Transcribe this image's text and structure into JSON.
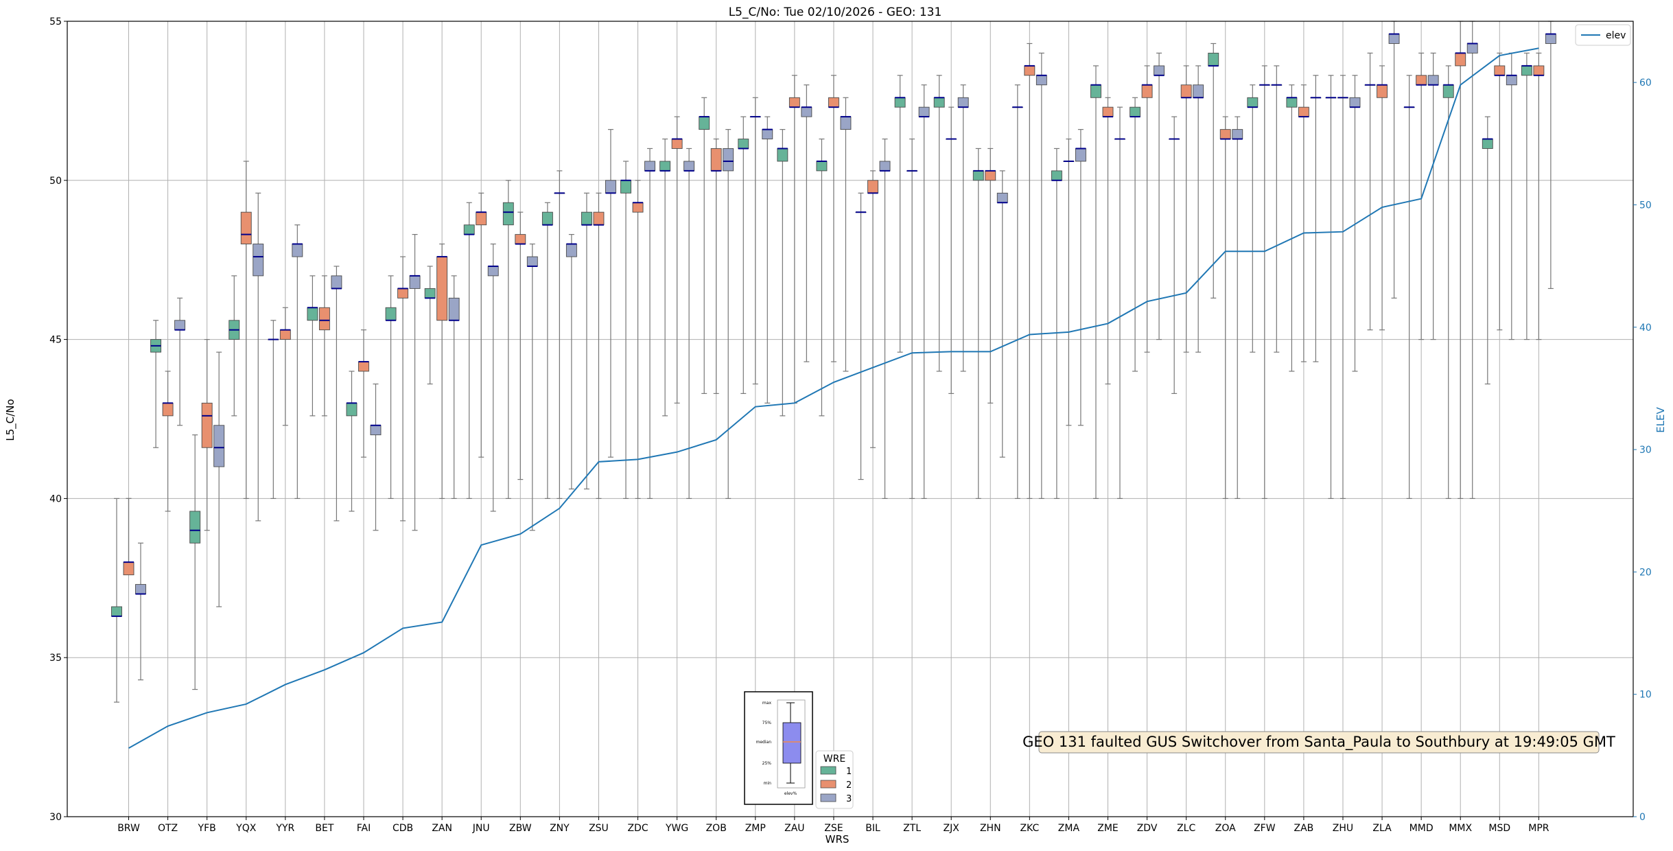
{
  "chart_data": {
    "type": "boxplot",
    "title": "L5_C/No: Tue 02/10/2026 - GEO: 131",
    "xlabel": "WRS",
    "ylabel": "L5_C/No",
    "ylabel_right": "ELEV",
    "ylim": [
      30,
      55
    ],
    "ylim_right": [
      0,
      65
    ],
    "yticks": [
      30,
      35,
      40,
      45,
      50,
      55
    ],
    "yticks_right": [
      0,
      10,
      20,
      30,
      40,
      50,
      60
    ],
    "grid": true,
    "categories": [
      "BRW",
      "OTZ",
      "YFB",
      "YQX",
      "YYR",
      "BET",
      "FAI",
      "CDB",
      "ZAN",
      "JNU",
      "ZBW",
      "ZNY",
      "ZSU",
      "ZDC",
      "YWG",
      "ZOB",
      "ZMP",
      "ZAU",
      "ZSE",
      "BIL",
      "ZTL",
      "ZJX",
      "ZHN",
      "ZKC",
      "ZMA",
      "ZME",
      "ZDV",
      "ZLC",
      "ZOA",
      "ZFW",
      "ZAB",
      "ZHU",
      "ZLA",
      "MMD",
      "MMX",
      "MSD",
      "MPR"
    ],
    "series": [
      {
        "name": "1",
        "color": "#66b398",
        "boxes": [
          [
            33.6,
            36.3,
            36.3,
            36.6,
            40.0
          ],
          [
            41.6,
            44.6,
            44.8,
            45.0,
            45.6
          ],
          [
            34.0,
            38.6,
            39.0,
            39.6,
            42.0
          ],
          [
            42.6,
            45.0,
            45.3,
            45.6,
            47.0
          ],
          [
            40.0,
            45.0,
            45.0,
            45.0,
            45.6
          ],
          [
            42.6,
            45.6,
            46.0,
            46.0,
            47.0
          ],
          [
            39.6,
            42.6,
            43.0,
            43.0,
            44.0
          ],
          [
            40.0,
            45.6,
            45.6,
            46.0,
            47.0
          ],
          [
            43.6,
            46.3,
            46.3,
            46.6,
            47.3
          ],
          [
            40.0,
            48.3,
            48.3,
            48.6,
            49.3
          ],
          [
            40.0,
            48.6,
            49.0,
            49.3,
            50.0
          ],
          [
            40.0,
            48.6,
            48.6,
            49.0,
            49.3
          ],
          [
            40.3,
            48.6,
            48.6,
            49.0,
            49.6
          ],
          [
            40.0,
            49.6,
            50.0,
            50.0,
            50.6
          ],
          [
            42.6,
            50.3,
            50.3,
            50.6,
            51.3
          ],
          [
            43.3,
            51.6,
            52.0,
            52.0,
            52.6
          ],
          [
            43.3,
            51.0,
            51.0,
            51.3,
            52.0
          ],
          [
            42.6,
            50.6,
            51.0,
            51.0,
            51.6
          ],
          [
            42.6,
            50.3,
            50.6,
            50.6,
            51.3
          ],
          [
            40.6,
            49.0,
            49.0,
            49.0,
            49.6
          ],
          [
            44.6,
            52.3,
            52.6,
            52.6,
            53.3
          ],
          [
            44.0,
            52.3,
            52.6,
            52.6,
            53.3
          ],
          [
            40.0,
            50.0,
            50.3,
            50.3,
            51.0
          ],
          [
            40.0,
            52.3,
            52.3,
            52.3,
            53.0
          ],
          [
            40.0,
            50.0,
            50.0,
            50.3,
            51.0
          ],
          [
            40.0,
            52.6,
            53.0,
            53.0,
            53.6
          ],
          [
            44.0,
            52.0,
            52.0,
            52.3,
            52.6
          ],
          [
            43.3,
            51.3,
            51.3,
            51.3,
            52.0
          ],
          [
            46.3,
            53.6,
            53.6,
            54.0,
            54.3
          ],
          [
            44.6,
            52.3,
            52.3,
            52.6,
            53.0
          ],
          [
            44.0,
            52.3,
            52.6,
            52.6,
            53.0
          ],
          [
            40.0,
            52.6,
            52.6,
            52.6,
            53.3
          ],
          [
            45.3,
            53.0,
            53.0,
            53.0,
            54.0
          ],
          [
            40.0,
            52.3,
            52.3,
            52.3,
            53.3
          ],
          [
            40.0,
            52.6,
            53.0,
            53.0,
            53.6
          ],
          [
            43.6,
            51.0,
            51.3,
            51.3,
            52.0
          ],
          [
            45.0,
            53.3,
            53.6,
            53.6,
            54.0
          ]
        ]
      },
      {
        "name": "2",
        "color": "#e8906f",
        "boxes": [
          [
            40.0,
            37.6,
            38.0,
            38.0,
            40.0
          ],
          [
            39.6,
            42.6,
            43.0,
            43.0,
            44.0
          ],
          [
            39.0,
            41.6,
            42.6,
            43.0,
            45.0
          ],
          [
            40.0,
            48.0,
            48.3,
            49.0,
            50.6
          ],
          [
            42.3,
            45.0,
            45.3,
            45.3,
            46.0
          ],
          [
            42.6,
            45.3,
            45.6,
            46.0,
            47.0
          ],
          [
            41.3,
            44.0,
            44.3,
            44.3,
            45.3
          ],
          [
            39.3,
            46.3,
            46.6,
            46.6,
            47.6
          ],
          [
            40.0,
            45.6,
            47.6,
            47.6,
            48.0
          ],
          [
            41.3,
            48.6,
            49.0,
            49.0,
            49.6
          ],
          [
            40.6,
            48.0,
            48.0,
            48.3,
            49.0
          ],
          [
            40.0,
            49.6,
            49.6,
            49.6,
            50.3
          ],
          [
            40.0,
            48.6,
            48.6,
            49.0,
            49.6
          ],
          [
            40.0,
            49.0,
            49.3,
            49.3,
            50.0
          ],
          [
            43.0,
            51.0,
            51.3,
            51.3,
            52.0
          ],
          [
            43.3,
            50.3,
            50.3,
            51.0,
            51.3
          ],
          [
            43.6,
            52.0,
            52.0,
            52.0,
            52.6
          ],
          [
            43.0,
            52.3,
            52.3,
            52.6,
            53.3
          ],
          [
            44.3,
            52.3,
            52.3,
            52.6,
            53.3
          ],
          [
            41.6,
            49.6,
            49.6,
            50.0,
            50.3
          ],
          [
            40.0,
            50.3,
            50.3,
            50.3,
            51.3
          ],
          [
            43.3,
            51.3,
            51.3,
            51.3,
            52.3
          ],
          [
            43.0,
            50.0,
            50.3,
            50.3,
            51.0
          ],
          [
            40.0,
            53.3,
            53.6,
            53.6,
            54.3
          ],
          [
            42.3,
            50.6,
            50.6,
            50.6,
            51.3
          ],
          [
            43.6,
            52.0,
            52.0,
            52.3,
            52.6
          ],
          [
            44.6,
            52.6,
            53.0,
            53.0,
            53.6
          ],
          [
            44.6,
            52.6,
            52.6,
            53.0,
            53.6
          ],
          [
            40.0,
            51.3,
            51.3,
            51.6,
            52.0
          ],
          [
            40.0,
            53.0,
            53.0,
            53.0,
            53.6
          ],
          [
            44.3,
            52.0,
            52.0,
            52.3,
            53.0
          ],
          [
            40.0,
            52.6,
            52.6,
            52.6,
            53.3
          ],
          [
            45.3,
            52.6,
            53.0,
            53.0,
            53.6
          ],
          [
            45.0,
            53.0,
            53.0,
            53.3,
            54.0
          ],
          [
            40.0,
            53.6,
            54.0,
            54.0,
            55.0
          ],
          [
            45.3,
            53.3,
            53.3,
            53.6,
            54.0
          ],
          [
            45.0,
            53.3,
            53.3,
            53.6,
            54.0
          ]
        ]
      },
      {
        "name": "3",
        "color": "#9aa5c6",
        "boxes": [
          [
            34.3,
            37.0,
            37.0,
            37.3,
            38.6
          ],
          [
            42.3,
            45.3,
            45.3,
            45.6,
            46.3
          ],
          [
            36.6,
            41.0,
            41.6,
            42.3,
            44.6
          ],
          [
            39.3,
            47.0,
            47.6,
            48.0,
            49.6
          ],
          [
            40.0,
            47.6,
            48.0,
            48.0,
            48.6
          ],
          [
            39.3,
            46.6,
            46.6,
            47.0,
            47.3
          ],
          [
            39.0,
            42.0,
            42.3,
            42.3,
            43.6
          ],
          [
            39.0,
            46.6,
            47.0,
            47.0,
            48.3
          ],
          [
            40.0,
            45.6,
            45.6,
            46.3,
            47.0
          ],
          [
            39.6,
            47.0,
            47.3,
            47.3,
            48.0
          ],
          [
            39.0,
            47.3,
            47.3,
            47.6,
            48.0
          ],
          [
            40.3,
            47.6,
            48.0,
            48.0,
            48.3
          ],
          [
            41.3,
            49.6,
            49.6,
            50.0,
            51.6
          ],
          [
            40.0,
            50.3,
            50.3,
            50.6,
            51.0
          ],
          [
            40.0,
            50.3,
            50.3,
            50.6,
            51.0
          ],
          [
            40.0,
            50.3,
            50.6,
            51.0,
            51.6
          ],
          [
            43.0,
            51.3,
            51.6,
            51.6,
            52.0
          ],
          [
            44.3,
            52.0,
            52.3,
            52.3,
            53.0
          ],
          [
            44.0,
            51.6,
            52.0,
            52.0,
            52.6
          ],
          [
            40.0,
            50.3,
            50.3,
            50.6,
            51.3
          ],
          [
            40.0,
            52.0,
            52.0,
            52.3,
            53.0
          ],
          [
            44.0,
            52.3,
            52.3,
            52.6,
            53.0
          ],
          [
            41.3,
            49.3,
            49.3,
            49.6,
            50.3
          ],
          [
            40.0,
            53.0,
            53.3,
            53.3,
            54.0
          ],
          [
            42.3,
            50.6,
            51.0,
            51.0,
            51.6
          ],
          [
            40.0,
            51.3,
            51.3,
            51.3,
            52.3
          ],
          [
            45.0,
            53.3,
            53.3,
            53.6,
            54.0
          ],
          [
            44.6,
            52.6,
            52.6,
            53.0,
            53.6
          ],
          [
            40.0,
            51.3,
            51.3,
            51.6,
            52.0
          ],
          [
            44.6,
            53.0,
            53.0,
            53.0,
            53.6
          ],
          [
            44.3,
            52.6,
            52.6,
            52.6,
            53.3
          ],
          [
            44.0,
            52.3,
            52.3,
            52.6,
            53.3
          ],
          [
            46.3,
            54.3,
            54.6,
            54.6,
            55.0
          ],
          [
            45.0,
            53.0,
            53.0,
            53.3,
            54.0
          ],
          [
            40.0,
            54.0,
            54.3,
            54.3,
            55.0
          ],
          [
            45.0,
            53.0,
            53.3,
            53.3,
            54.0
          ],
          [
            46.6,
            54.3,
            54.6,
            54.6,
            55.0
          ]
        ]
      }
    ],
    "elev": {
      "name": "elev",
      "color": "#1f77b4",
      "values": [
        5.6,
        7.4,
        8.5,
        9.2,
        10.8,
        12.0,
        13.4,
        15.4,
        15.9,
        22.2,
        23.1,
        25.2,
        29.0,
        29.2,
        29.8,
        30.8,
        33.5,
        33.8,
        35.5,
        36.7,
        37.9,
        38.0,
        38.0,
        39.4,
        39.6,
        40.3,
        42.1,
        42.8,
        46.2,
        46.2,
        47.7,
        47.8,
        49.8,
        50.5,
        59.8,
        62.2,
        62.8
      ]
    },
    "legend_elev_label": "elev",
    "legend_title": "WRE",
    "legend_entries": [
      "1",
      "2",
      "3"
    ],
    "annotation": "GEO 131 faulted GUS Switchover from Santa_Paula to Southbury at 19:49:05 GMT",
    "inset": {
      "labels": [
        "max",
        "75%",
        "median",
        "25%",
        "min"
      ],
      "xlabel": "elev%"
    }
  }
}
